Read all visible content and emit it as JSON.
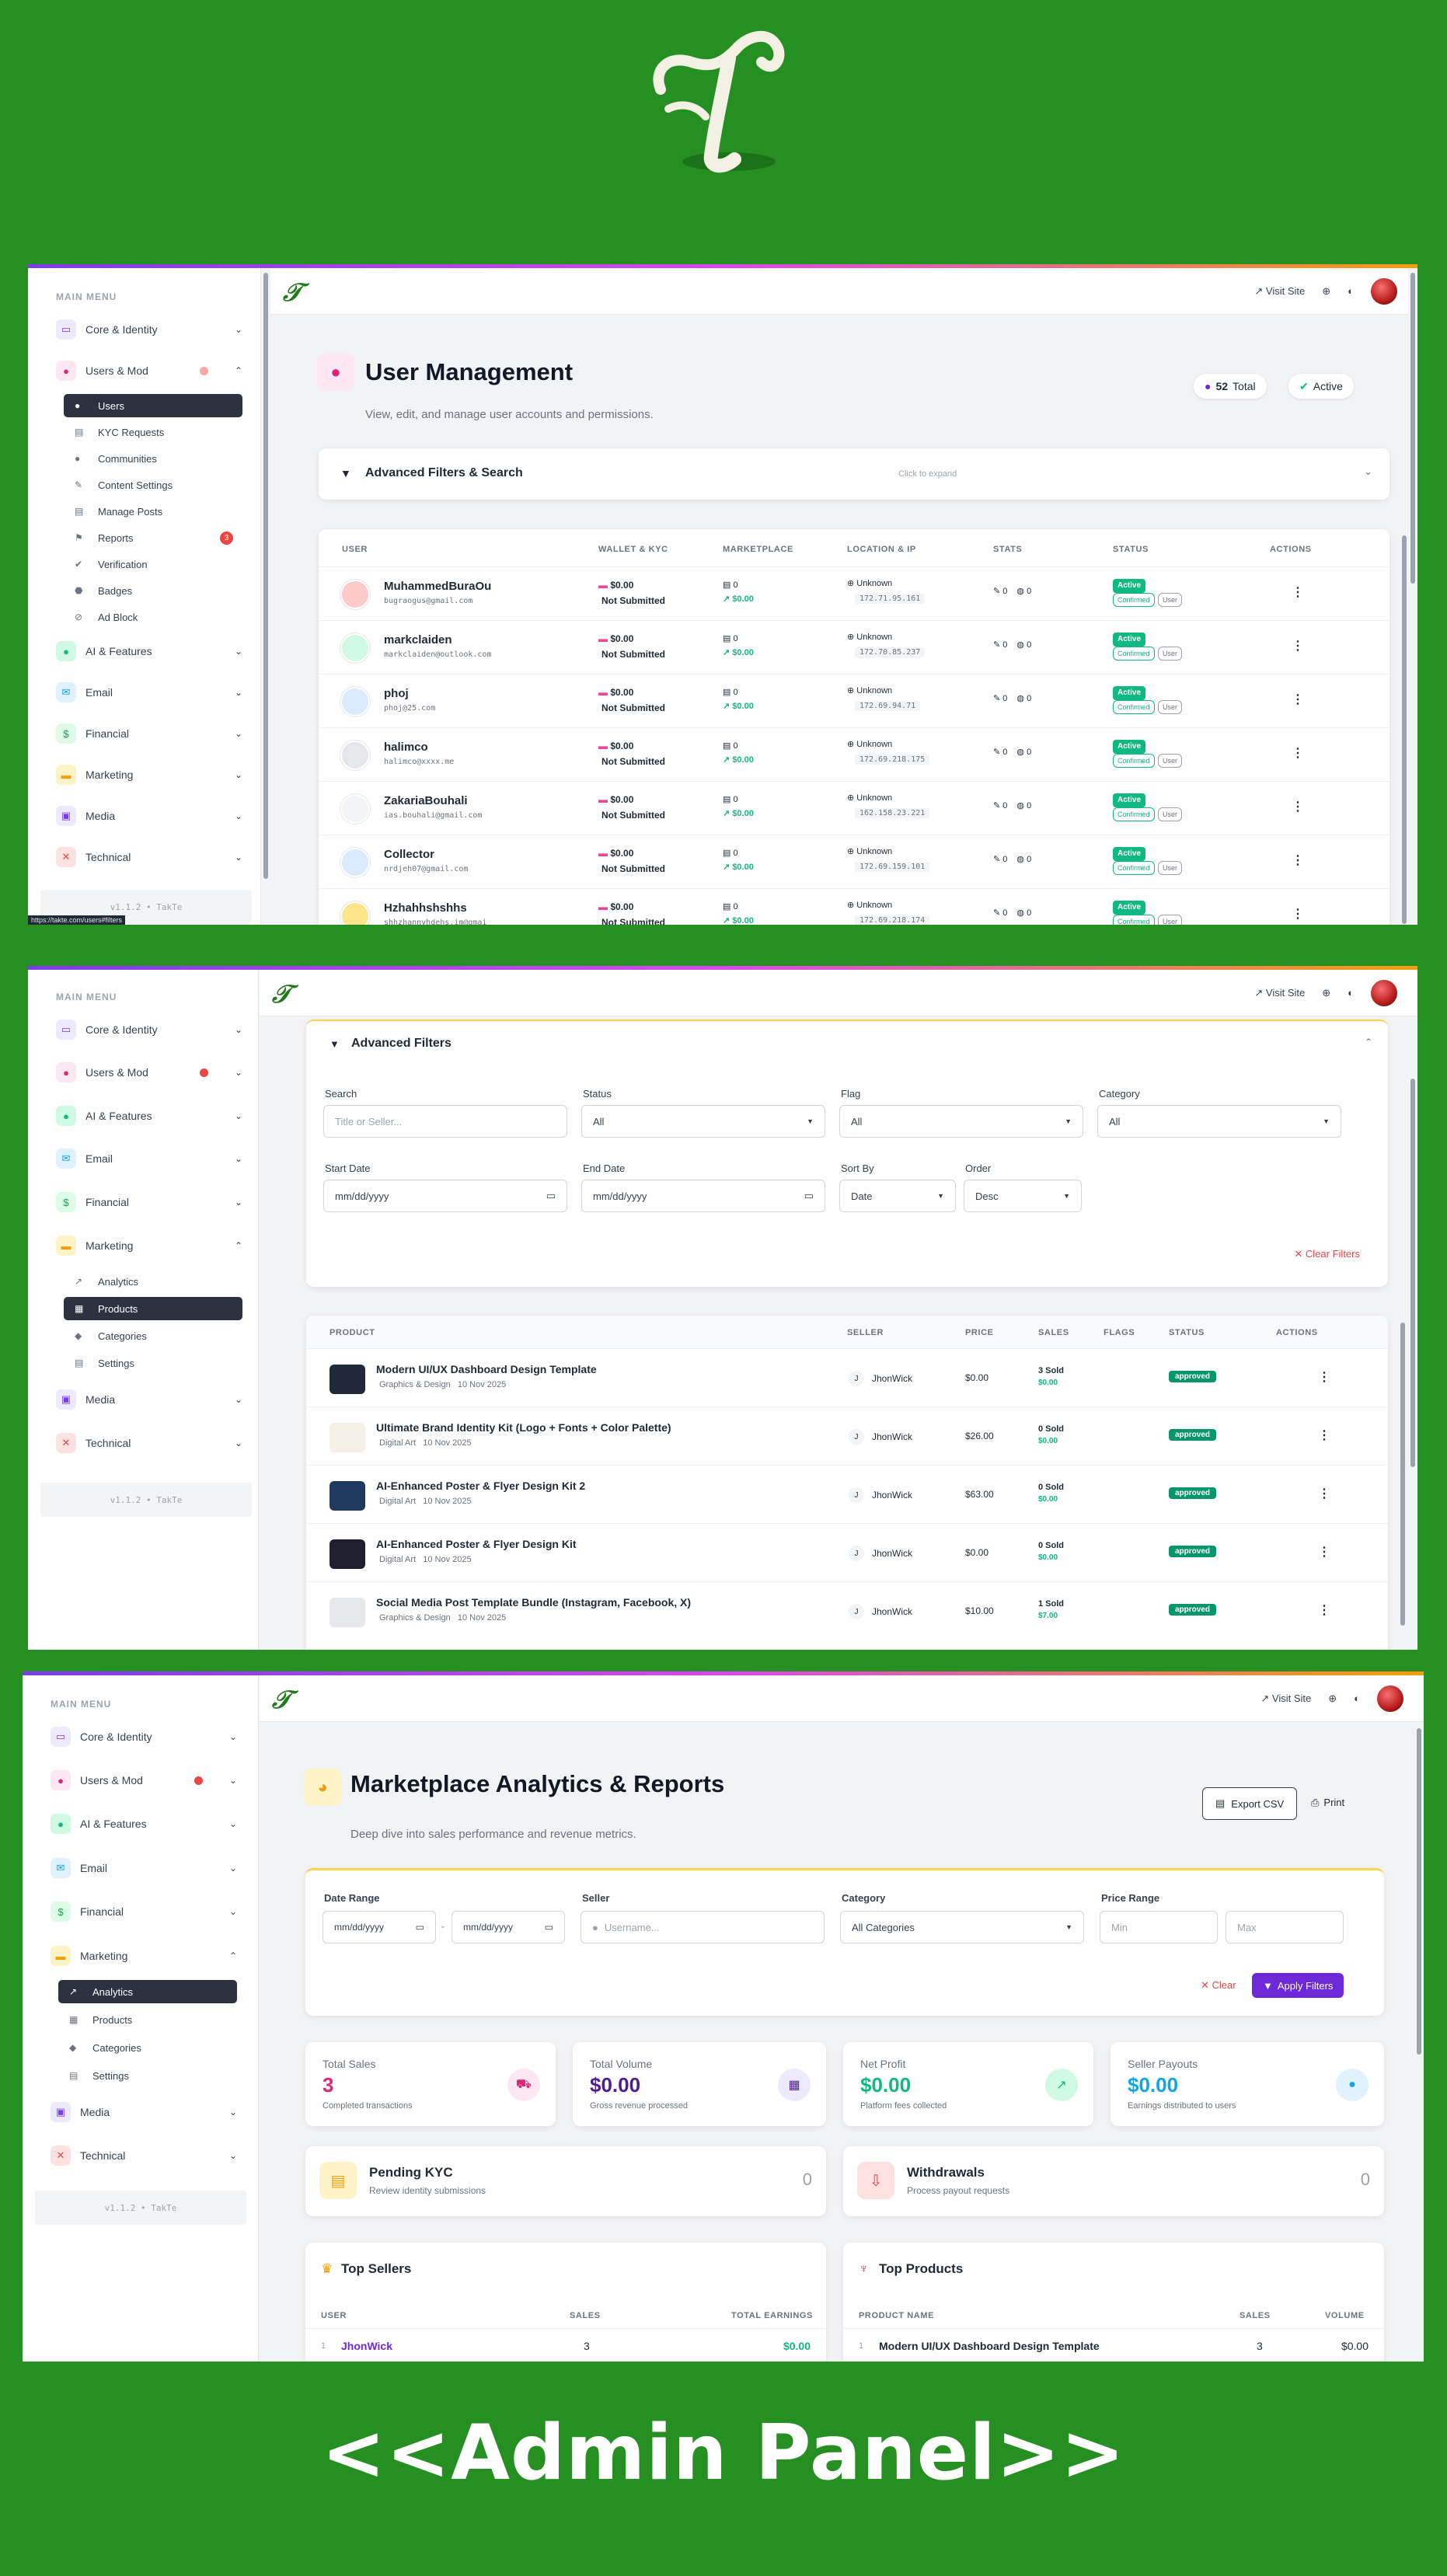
{
  "bottom_title": "<<Admin Panel>>",
  "colors": {
    "bg_green": "#259021",
    "accent_purple": "#6d28d9",
    "sidebar_active": "#2d3240",
    "success": "#10b981",
    "danger": "#ef4444"
  },
  "common": {
    "menu_title": "MAIN MENU",
    "visit_site": "Visit Site",
    "version": "v1.1.2 • TakTe",
    "status_url": "https://takte.com/users#filters",
    "groups": {
      "core": "Core & Identity",
      "users": "Users & Mod",
      "ai": "AI & Features",
      "email": "Email",
      "financial": "Financial",
      "marketing": "Marketing",
      "media": "Media",
      "technical": "Technical"
    },
    "user_subs": [
      "Users",
      "KYC Requests",
      "Communities",
      "Content Settings",
      "Manage Posts",
      "Reports",
      "Verification",
      "Badges",
      "Ad Block"
    ],
    "reports_badge": "3",
    "marketing_subs": [
      "Analytics",
      "Products",
      "Categories",
      "Settings"
    ]
  },
  "users_page": {
    "title": "User Management",
    "subtitle": "View, edit, and manage user accounts and permissions.",
    "total_count": "52",
    "total_label": "Total",
    "active_label": "Active",
    "filters_title": "Advanced Filters & Search",
    "filters_hint": "Click to expand",
    "columns": [
      "USER",
      "WALLET & KYC",
      "MARKETPLACE",
      "LOCATION & IP",
      "STATS",
      "STATUS",
      "ACTIONS"
    ],
    "rows": [
      {
        "name": "MuhammedBuraOu",
        "email": "bugraogus@gmail.com",
        "ip": "172.71.95.161"
      },
      {
        "name": "markclaiden",
        "email": "markclaiden@outlook.com",
        "ip": "172.70.85.237"
      },
      {
        "name": "phoj",
        "email": "phoj@25.com",
        "ip": "172.69.94.71"
      },
      {
        "name": "halimco",
        "email": "halimco@xxxx.me",
        "ip": "172.69.218.175"
      },
      {
        "name": "ZakariaBouhali",
        "email": "ias.bouhali@gmail.com",
        "ip": "162.158.23.221"
      },
      {
        "name": "Collector",
        "email": "nrdjeh07@gmail.com",
        "ip": "172.69.159.101"
      },
      {
        "name": "Hzhahhshshhs",
        "email": "shhzhannyhdehs.im@gmai",
        "ip": "172.69.218.174"
      }
    ],
    "wallet_amount": "$0.00",
    "kyc_status": "Not Submitted",
    "market_count": "0",
    "market_amount": "$0.00",
    "location": "Unknown",
    "stat_a": "0",
    "stat_b": "0",
    "status_active": "Active",
    "status_confirmed": "Confirmed",
    "status_user": "User"
  },
  "products_page": {
    "filters_title": "Advanced Filters",
    "search_label": "Search",
    "search_placeholder": "Title or Seller...",
    "status_label": "Status",
    "status_value": "All",
    "flag_label": "Flag",
    "flag_value": "All",
    "category_label": "Category",
    "category_value": "All",
    "start_label": "Start Date",
    "end_label": "End Date",
    "date_placeholder": "mm/dd/yyyy",
    "sortby_label": "Sort By",
    "sortby_value": "Date",
    "order_label": "Order",
    "order_value": "Desc",
    "clear": "Clear Filters",
    "columns": [
      "PRODUCT",
      "SELLER",
      "PRICE",
      "SALES",
      "FLAGS",
      "STATUS",
      "ACTIONS"
    ],
    "rows": [
      {
        "title": "Modern UI/UX Dashboard Design Template",
        "cat": "Graphics & Design",
        "date": "10 Nov 2025",
        "price": "$0.00",
        "sold": "3 Sold",
        "earn": "$0.00"
      },
      {
        "title": "Ultimate Brand Identity Kit (Logo + Fonts + Color Palette)",
        "cat": "Digital Art",
        "date": "10 Nov 2025",
        "price": "$26.00",
        "sold": "0 Sold",
        "earn": "$0.00"
      },
      {
        "title": "AI-Enhanced Poster & Flyer Design Kit 2",
        "cat": "Digital Art",
        "date": "10 Nov 2025",
        "price": "$63.00",
        "sold": "0 Sold",
        "earn": "$0.00"
      },
      {
        "title": "AI-Enhanced Poster & Flyer Design Kit",
        "cat": "Digital Art",
        "date": "10 Nov 2025",
        "price": "$0.00",
        "sold": "0 Sold",
        "earn": "$0.00"
      },
      {
        "title": "Social Media Post Template Bundle (Instagram, Facebook, X)",
        "cat": "Graphics & Design",
        "date": "10 Nov 2025",
        "price": "$10.00",
        "sold": "1 Sold",
        "earn": "$7.00"
      }
    ],
    "seller": "JhonWick",
    "seller_initial": "J",
    "status": "approved"
  },
  "analytics_page": {
    "title": "Marketplace Analytics & Reports",
    "subtitle": "Deep dive into sales performance and revenue metrics.",
    "export": "Export CSV",
    "print": "Print",
    "date_range_label": "Date Range",
    "seller_label": "Seller",
    "seller_placeholder": "Username...",
    "category_label": "Category",
    "category_value": "All Categories",
    "price_label": "Price Range",
    "min": "Min",
    "max": "Max",
    "clear": "Clear",
    "apply": "Apply Filters",
    "stats": [
      {
        "label": "Total Sales",
        "value": "3",
        "sub": "Completed transactions"
      },
      {
        "label": "Total Volume",
        "value": "$0.00",
        "sub": "Gross revenue processed"
      },
      {
        "label": "Net Profit",
        "value": "$0.00",
        "sub": "Platform fees collected"
      },
      {
        "label": "Seller Payouts",
        "value": "$0.00",
        "sub": "Earnings distributed to users"
      }
    ],
    "pending_kyc": {
      "title": "Pending KYC",
      "sub": "Review identity submissions",
      "count": "0"
    },
    "withdrawals": {
      "title": "Withdrawals",
      "sub": "Process payout requests",
      "count": "0"
    },
    "top_sellers": {
      "title": "Top Sellers",
      "cols": [
        "USER",
        "SALES",
        "TOTAL EARNINGS"
      ],
      "row": {
        "rank": "1",
        "user": "JhonWick",
        "sales": "3",
        "earn": "$0.00"
      }
    },
    "top_products": {
      "title": "Top Products",
      "cols": [
        "PRODUCT NAME",
        "SALES",
        "VOLUME"
      ],
      "row": {
        "rank": "1",
        "name": "Modern UI/UX Dashboard Design Template",
        "sales": "3",
        "vol": "$0.00"
      }
    }
  }
}
